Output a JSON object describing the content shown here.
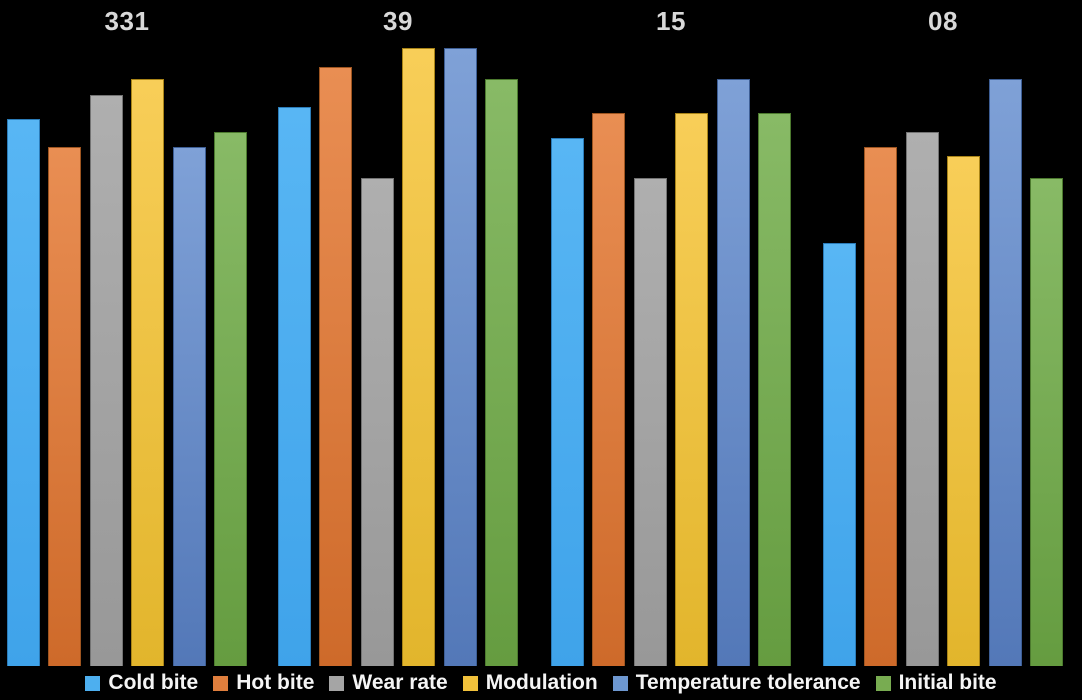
{
  "chart_data": {
    "type": "bar",
    "title": "",
    "categories": [
      "331",
      "39",
      "15",
      "08"
    ],
    "category_labels_position": "top",
    "series": [
      {
        "name": "Cold bite",
        "values": [
          8.85,
          9.05,
          8.55,
          6.85
        ],
        "color": "#4DAFEF",
        "color_top": "#58B6F4",
        "color_bottom": "#3FA3EA",
        "border_color": "#2B7CB9"
      },
      {
        "name": "Hot bite",
        "values": [
          8.4,
          9.7,
          8.95,
          8.4
        ],
        "color": "#DF7E3D",
        "color_top": "#E98E53",
        "color_bottom": "#CE6A2A",
        "border_color": "#9E5520"
      },
      {
        "name": "Wear rate",
        "values": [
          9.25,
          7.9,
          7.9,
          8.65
        ],
        "color": "#A5A5A5",
        "color_top": "#AFAFAF",
        "color_bottom": "#989898",
        "border_color": "#737373"
      },
      {
        "name": "Modulation",
        "values": [
          9.5,
          10,
          8.95,
          8.25
        ],
        "color": "#F1C13B",
        "color_top": "#F8CE58",
        "color_bottom": "#E2B52C",
        "border_color": "#A98417"
      },
      {
        "name": "Temperature tolerance",
        "values": [
          8.4,
          10,
          9.5,
          9.5
        ],
        "color": "#6D97D0",
        "color_top": "#7FA1D7",
        "color_bottom": "#5378B8",
        "border_color": "#3D5E95"
      },
      {
        "name": "Initial bite",
        "values": [
          8.65,
          9.5,
          8.95,
          7.9
        ],
        "color": "#78AC51",
        "color_top": "#88BA66",
        "color_bottom": "#659C40",
        "border_color": "#4C7A2E"
      }
    ],
    "ylim": [
      0,
      10.78
    ],
    "axes_visible": false,
    "grid": false,
    "legend_position": "bottom",
    "background": "#000000",
    "category_label_color": "#D9D9D9",
    "legend_text_color": "#F5F5F5"
  }
}
